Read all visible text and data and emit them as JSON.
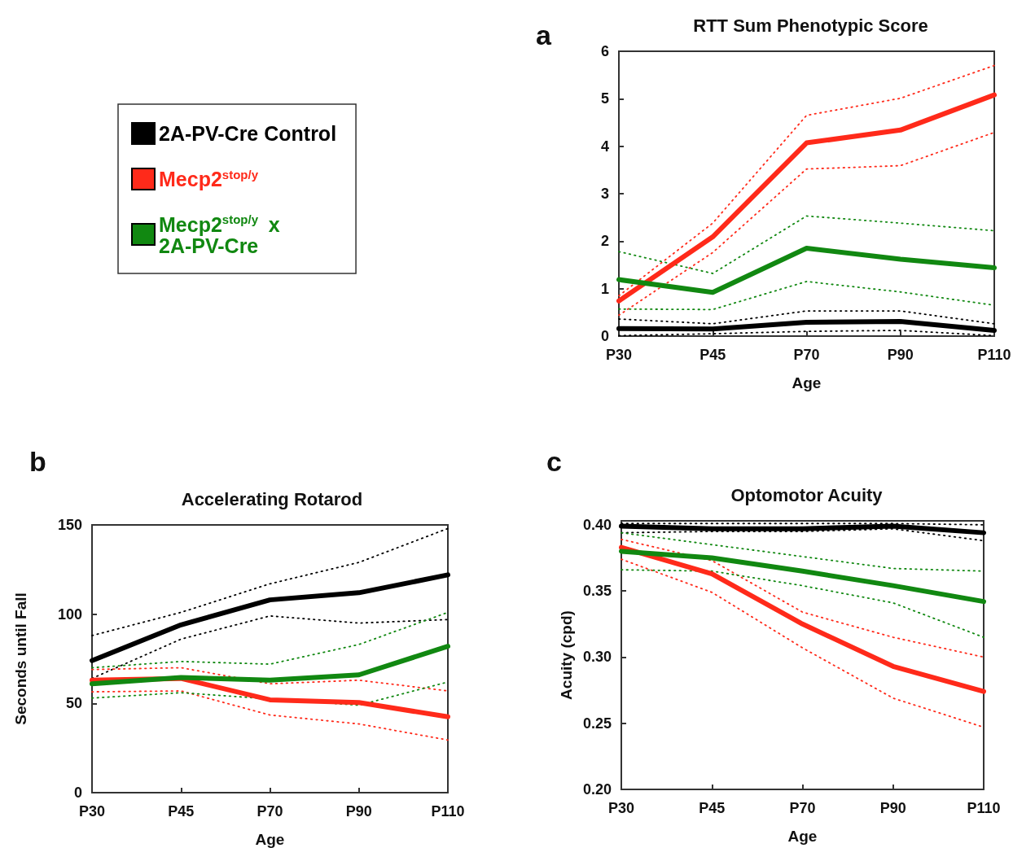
{
  "chart_data": [
    {
      "type": "line",
      "title": "RTT Sum Phenotypic Score",
      "xlabel": "Age",
      "annotations": [
        "a"
      ],
      "categories": [
        "P30",
        "P45",
        "P70",
        "P90",
        "P110"
      ],
      "ylim": [
        0,
        6
      ],
      "yticks": [
        0,
        1,
        2,
        3,
        4,
        5,
        6
      ],
      "grid": false,
      "marker": "none",
      "legend": "left",
      "series": [
        {
          "color": "#000000",
          "line_style": "dotted",
          "values": [
            0.01,
            0.05,
            0.1,
            0.12,
            0.01
          ]
        },
        {
          "color": "#000000",
          "line_style": "dotted",
          "values": [
            0.36,
            0.26,
            0.53,
            0.53,
            0.26
          ]
        },
        {
          "color": "#ff2a1a",
          "line_style": "dotted",
          "values": [
            0.44,
            1.76,
            3.52,
            3.59,
            4.29
          ]
        },
        {
          "color": "#ff2a1a",
          "line_style": "dotted",
          "values": [
            0.85,
            2.38,
            4.65,
            5.01,
            5.7
          ]
        },
        {
          "color": "#118811",
          "line_style": "dotted",
          "values": [
            0.57,
            0.56,
            1.15,
            0.93,
            0.65
          ]
        },
        {
          "color": "#118811",
          "line_style": "dotted",
          "values": [
            1.78,
            1.32,
            2.53,
            2.38,
            2.22
          ]
        },
        {
          "name": "2A-PV-Cre Control",
          "color": "#000000",
          "line_style": "solid",
          "values": [
            0.16,
            0.15,
            0.29,
            0.31,
            0.12
          ]
        },
        {
          "name": "Mecp2$^{stop/y}$",
          "color": "#ff2a1a",
          "line_style": "solid",
          "values": [
            0.74,
            2.09,
            4.07,
            4.34,
            5.08
          ]
        },
        {
          "name": "Mecp2$^{stop/y}$ x 2A-PV-Cre",
          "color": "#118811",
          "line_style": "solid",
          "values": [
            1.19,
            0.92,
            1.85,
            1.62,
            1.44
          ]
        }
      ]
    },
    {
      "type": "line",
      "title": "Accelerating Rotarod",
      "xlabel": "Age",
      "ylabel": "Seconds until Fall",
      "annotations": [
        "b"
      ],
      "categories": [
        "P30",
        "P45",
        "P70",
        "P90",
        "P110"
      ],
      "ylim": [
        0,
        150
      ],
      "yticks": [
        0,
        50,
        100,
        150
      ],
      "grid": false,
      "marker": "none",
      "series": [
        {
          "color": "#000000",
          "line_style": "dotted",
          "values": [
            64,
            86,
            99,
            95,
            97
          ]
        },
        {
          "color": "#000000",
          "line_style": "dotted",
          "values": [
            88,
            101,
            117,
            129,
            148
          ]
        },
        {
          "color": "#ff2a1a",
          "line_style": "dotted",
          "values": [
            56.5,
            57,
            43.5,
            38.5,
            29.5
          ]
        },
        {
          "color": "#ff2a1a",
          "line_style": "dotted",
          "values": [
            69,
            70,
            61,
            63,
            57
          ]
        },
        {
          "color": "#118811",
          "line_style": "dotted",
          "values": [
            53,
            56,
            null,
            49,
            62
          ]
        },
        {
          "color": "#118811",
          "line_style": "dotted",
          "values": [
            70,
            73.5,
            72,
            83,
            101
          ]
        },
        {
          "color": "#000000",
          "line_style": "solid",
          "values": [
            74,
            94,
            108,
            112,
            122
          ]
        },
        {
          "color": "#ff2a1a",
          "line_style": "solid",
          "values": [
            63,
            64,
            52,
            50.5,
            42.5
          ]
        },
        {
          "color": "#118811",
          "line_style": "solid",
          "values": [
            61,
            64.5,
            63,
            66,
            82
          ]
        }
      ]
    },
    {
      "type": "line",
      "title": "Optomotor Acuity",
      "xlabel": "Age",
      "ylabel": "Acuity (cpd)",
      "annotations": [
        "c"
      ],
      "categories": [
        "P30",
        "P45",
        "P70",
        "P90",
        "P110"
      ],
      "ylim": [
        0.2,
        0.403
      ],
      "yticks": [
        {
          "value": 0.2,
          "label": "0.20"
        },
        {
          "value": 0.25,
          "label": "0.25"
        },
        {
          "value": 0.3,
          "label": "0.30"
        },
        {
          "value": 0.35,
          "label": "0.35"
        },
        {
          "value": 0.4,
          "label": "0.40"
        }
      ],
      "grid": false,
      "marker": "none",
      "series": [
        {
          "color": "#000000",
          "line_style": "dotted",
          "values": [
            0.394,
            0.395,
            0.395,
            0.397,
            0.388
          ]
        },
        {
          "color": "#000000",
          "line_style": "dotted",
          "values": [
            0.401,
            0.401,
            0.401,
            0.401,
            0.4
          ]
        },
        {
          "color": "#ff2a1a",
          "line_style": "dotted",
          "values": [
            0.374,
            0.349,
            0.307,
            0.269,
            0.247
          ]
        },
        {
          "color": "#ff2a1a",
          "line_style": "dotted",
          "values": [
            0.389,
            0.373,
            0.334,
            0.315,
            0.3
          ]
        },
        {
          "color": "#118811",
          "line_style": "dotted",
          "values": [
            0.366,
            0.365,
            0.354,
            0.341,
            0.315
          ]
        },
        {
          "color": "#118811",
          "line_style": "dotted",
          "values": [
            0.394,
            0.385,
            0.376,
            0.367,
            0.365
          ]
        },
        {
          "color": "#000000",
          "line_style": "solid",
          "values": [
            0.399,
            0.397,
            0.397,
            0.399,
            0.394
          ]
        },
        {
          "color": "#ff2a1a",
          "line_style": "solid",
          "values": [
            0.383,
            0.363,
            0.325,
            0.293,
            0.274
          ]
        },
        {
          "color": "#118811",
          "line_style": "solid",
          "values": [
            0.38,
            0.375,
            0.365,
            0.354,
            0.342
          ]
        }
      ]
    }
  ]
}
